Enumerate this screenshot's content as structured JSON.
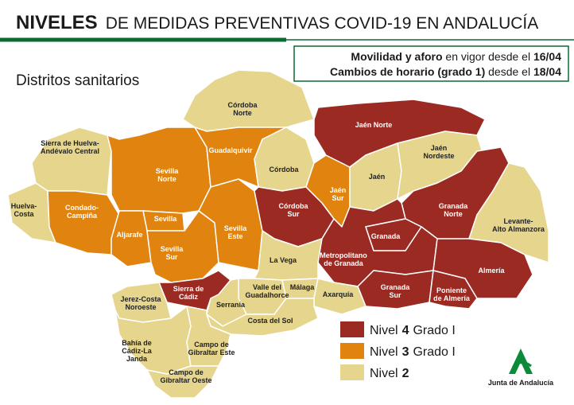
{
  "header": {
    "title_bold": "NIVELES",
    "title_rest": "DE MEDIDAS PREVENTIVAS COVID-19 EN ANDALUCÍA",
    "info": [
      {
        "bold": "Movilidad y aforo",
        "normal": "en vigor desde el",
        "date": "16/04"
      },
      {
        "bold": "Cambios de horario (grado 1)",
        "normal": "desde el",
        "date": "18/04"
      }
    ]
  },
  "subtitle": "Distritos sanitarios",
  "regions": [
    {
      "name": [
        "Sierra de Huelva-",
        "Andévalo Central"
      ],
      "level": 2
    },
    {
      "name": [
        "Huelva-",
        "Costa"
      ],
      "level": 2
    },
    {
      "name": [
        "Condado-",
        "Campiña"
      ],
      "level": 3
    },
    {
      "name": [
        "Sevilla",
        "Norte"
      ],
      "level": 3
    },
    {
      "name": [
        "Sevilla"
      ],
      "level": 3
    },
    {
      "name": [
        "Aljarafe"
      ],
      "level": 3
    },
    {
      "name": [
        "Sevilla",
        "Sur"
      ],
      "level": 3
    },
    {
      "name": [
        "Sevilla",
        "Este"
      ],
      "level": 3
    },
    {
      "name": [
        "Córdoba",
        "Norte"
      ],
      "level": 2
    },
    {
      "name": [
        "Guadalquivir"
      ],
      "level": 3
    },
    {
      "name": [
        "Córdoba"
      ],
      "level": 2
    },
    {
      "name": [
        "Córdoba",
        "Sur"
      ],
      "level": 4
    },
    {
      "name": [
        "Jaén",
        "Sur"
      ],
      "level": 3
    },
    {
      "name": [
        "Jaén Norte"
      ],
      "level": 4
    },
    {
      "name": [
        "Jaén"
      ],
      "level": 2
    },
    {
      "name": [
        "Jaén",
        "Nordeste"
      ],
      "level": 2
    },
    {
      "name": [
        "Granada",
        "Norte"
      ],
      "level": 4
    },
    {
      "name": [
        "Levante-",
        "Alto Almanzora"
      ],
      "level": 2
    },
    {
      "name": [
        "Granada"
      ],
      "level": 4
    },
    {
      "name": [
        "Metropolitano",
        "de Granada"
      ],
      "level": 4
    },
    {
      "name": [
        "Almería"
      ],
      "level": 4
    },
    {
      "name": [
        "Granada",
        "Sur"
      ],
      "level": 4
    },
    {
      "name": [
        "Poniente",
        "de Almería"
      ],
      "level": 4
    },
    {
      "name": [
        "La Vega"
      ],
      "level": 2
    },
    {
      "name": [
        "Valle del",
        "Guadalhorce"
      ],
      "level": 2
    },
    {
      "name": [
        "Málaga"
      ],
      "level": 2
    },
    {
      "name": [
        "Axarquía"
      ],
      "level": 2
    },
    {
      "name": [
        "Sierra de",
        "Cádiz"
      ],
      "level": 4
    },
    {
      "name": [
        "Serranía"
      ],
      "level": 2
    },
    {
      "name": [
        "Jerez-Costa",
        "Noroeste"
      ],
      "level": 2
    },
    {
      "name": [
        "Costa del Sol"
      ],
      "level": 2
    },
    {
      "name": [
        "Bahía de",
        "Cádiz-La",
        "Janda"
      ],
      "level": 2
    },
    {
      "name": [
        "Campo de",
        "Gibraltar Este"
      ],
      "level": 2
    },
    {
      "name": [
        "Campo de",
        "Gibraltar Oeste"
      ],
      "level": 2
    }
  ],
  "legend": [
    {
      "label": "Nivel",
      "level": 4,
      "suffix": "Grado I",
      "color": "#9b2a23"
    },
    {
      "label": "Nivel",
      "level": 3,
      "suffix": "Grado I",
      "color": "#e0830f"
    },
    {
      "label": "Nivel",
      "level": 2,
      "color": "#e6d58d"
    }
  ],
  "logo": "Junta de Andalucía"
}
